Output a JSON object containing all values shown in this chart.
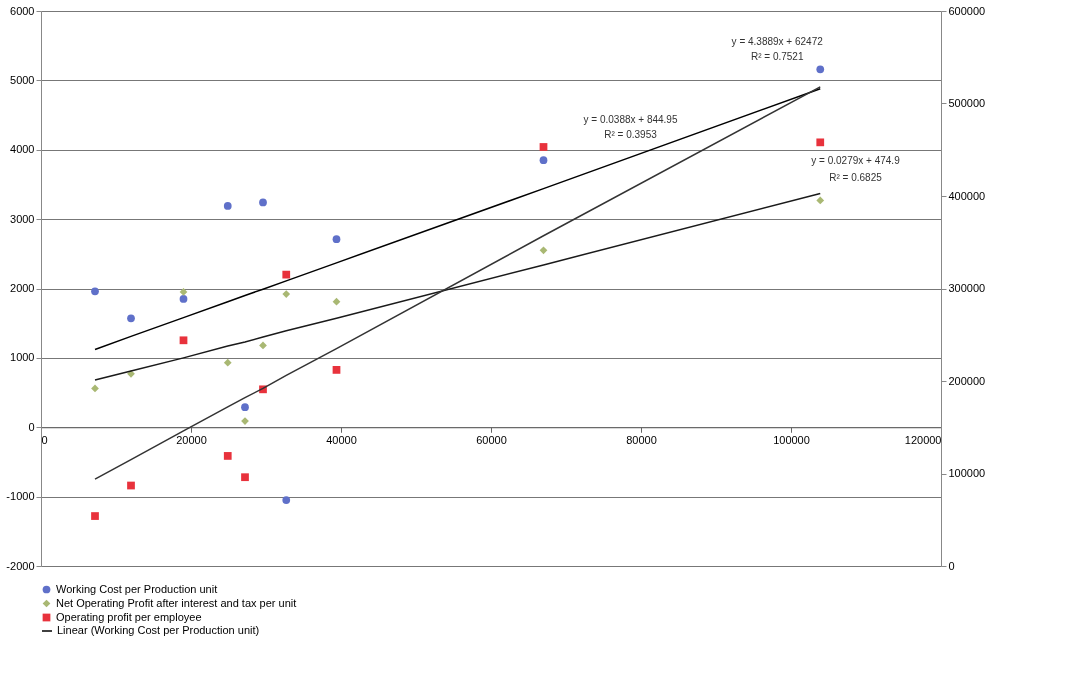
{
  "chart_data": {
    "type": "scatter",
    "x": [
      7200,
      12000,
      19000,
      24900,
      27200,
      29600,
      32700,
      39400,
      67000,
      103900
    ],
    "xlim": [
      0,
      120000
    ],
    "xticks": [
      0,
      20000,
      40000,
      60000,
      80000,
      100000,
      120000
    ],
    "ylim": [
      -2000,
      6000
    ],
    "yticks": [
      -2000,
      -1000,
      0,
      1000,
      2000,
      3000,
      4000,
      5000,
      6000
    ],
    "y2lim": [
      0,
      600000
    ],
    "y2ticks": [
      0,
      100000,
      200000,
      300000,
      400000,
      500000,
      600000
    ],
    "grid": "y",
    "legend": "bottom",
    "series": [
      {
        "name": "Working Cost per Production unit",
        "marker": "circle",
        "color": "#5f70c9",
        "values": [
          1960,
          1570,
          1850,
          3190,
          290,
          3240,
          -1050,
          2710,
          3850,
          5160
        ]
      },
      {
        "name": "Net Operating Profit after interest and tax per unit",
        "marker": "diamond",
        "color": "#a9b873",
        "values": [
          560,
          770,
          1950,
          930,
          90,
          1180,
          1920,
          1810,
          2550,
          3270
        ]
      },
      {
        "name": "Operating profit per employee",
        "marker": "square",
        "axis": "y2",
        "color": "#e8323c",
        "values": [
          54000,
          87000,
          244000,
          119000,
          96000,
          191000,
          315000,
          212000,
          453000,
          458000
        ]
      },
      {
        "name": "Linear (Working Cost per Production unit)",
        "type": "line",
        "color": "#000000",
        "values": [
          1120,
          1310,
          1580,
          1810,
          1900,
          1990,
          2110,
          2370,
          3440,
          4880
        ]
      },
      {
        "type": "line",
        "color": "#1a1a1a",
        "values": [
          680,
          810,
          1000,
          1170,
          1230,
          1300,
          1390,
          1570,
          2340,
          3370
        ]
      },
      {
        "type": "line",
        "axis": "y2",
        "color": "#333333",
        "values": [
          94000,
          115000,
          146000,
          172000,
          182000,
          192000,
          206000,
          235000,
          357000,
          518000
        ]
      }
    ],
    "annotations": [
      "y = 4.3889x + 62472",
      "R² = 0.7521",
      "y = 0.0388x + 844.95",
      "R² = 0.3953",
      "y = 0.0279x + 474.9",
      "R² = 0.6825"
    ]
  }
}
